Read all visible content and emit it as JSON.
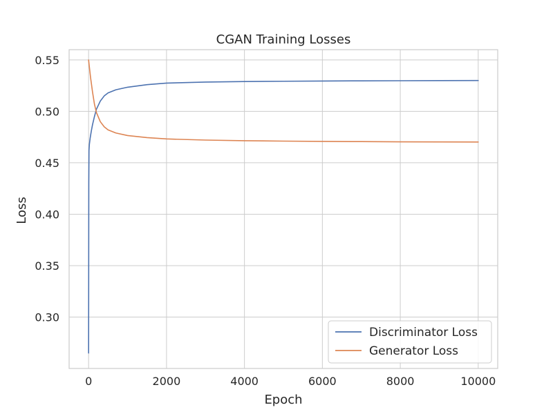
{
  "chart_data": {
    "type": "line",
    "title": "CGAN Training Losses",
    "xlabel": "Epoch",
    "ylabel": "Loss",
    "xlim": [
      -500,
      10500
    ],
    "ylim": [
      0.25,
      0.56
    ],
    "x_ticks": [
      0,
      2000,
      4000,
      6000,
      8000,
      10000
    ],
    "x_tick_labels": [
      "0",
      "2000",
      "4000",
      "6000",
      "8000",
      "10000"
    ],
    "y_ticks": [
      0.3,
      0.35,
      0.4,
      0.45,
      0.5,
      0.55
    ],
    "y_tick_labels": [
      "0.30",
      "0.35",
      "0.40",
      "0.45",
      "0.50",
      "0.55"
    ],
    "grid": true,
    "legend_position": "lower-right",
    "series": [
      {
        "name": "Discriminator Loss",
        "color": "#4c72b0",
        "x": [
          0,
          5,
          10,
          20,
          40,
          70,
          100,
          150,
          200,
          300,
          400,
          500,
          700,
          1000,
          1500,
          2000,
          3000,
          4000,
          5000,
          6000,
          7000,
          8000,
          9000,
          10000
        ],
        "y": [
          0.265,
          0.43,
          0.462,
          0.468,
          0.474,
          0.481,
          0.487,
          0.495,
          0.502,
          0.51,
          0.515,
          0.518,
          0.521,
          0.5235,
          0.526,
          0.5275,
          0.5285,
          0.529,
          0.5293,
          0.5295,
          0.5297,
          0.5298,
          0.5299,
          0.53
        ]
      },
      {
        "name": "Generator Loss",
        "color": "#dd8452",
        "x": [
          0,
          20,
          50,
          100,
          150,
          200,
          300,
          400,
          500,
          700,
          1000,
          1500,
          2000,
          3000,
          4000,
          5000,
          6000,
          7000,
          8000,
          9000,
          10000
        ],
        "y": [
          0.55,
          0.543,
          0.533,
          0.519,
          0.507,
          0.499,
          0.49,
          0.485,
          0.482,
          0.479,
          0.4765,
          0.4745,
          0.4732,
          0.4721,
          0.4715,
          0.4711,
          0.4708,
          0.4706,
          0.4704,
          0.4703,
          0.4702
        ]
      }
    ]
  }
}
